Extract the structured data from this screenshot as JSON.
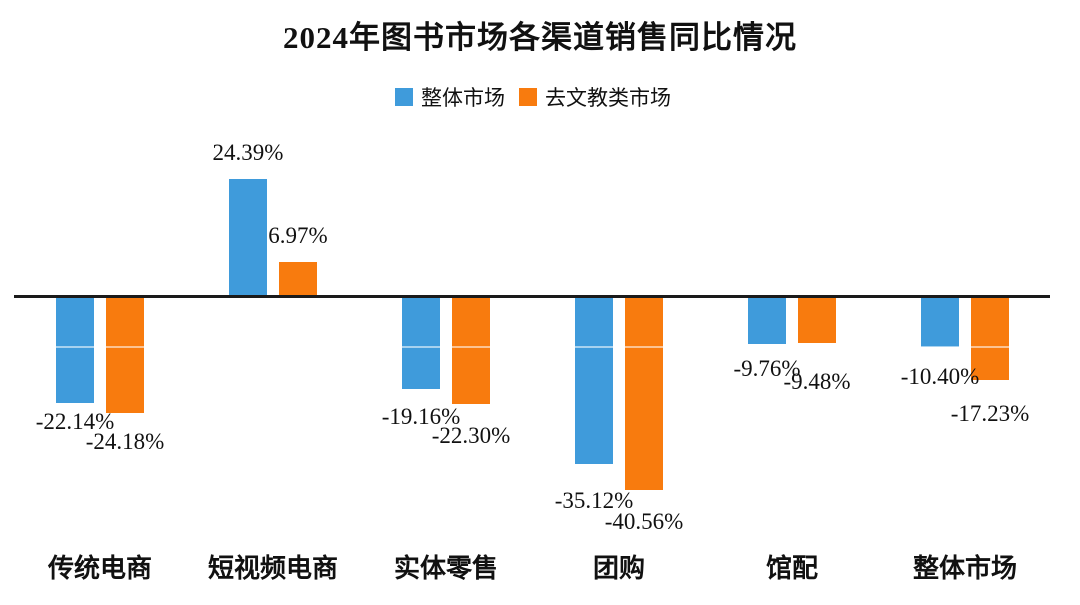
{
  "chart_data": {
    "type": "bar",
    "title": "2024年图书市场各渠道销售同比情况",
    "categories": [
      "传统电商",
      "短视频电商",
      "实体零售",
      "团购",
      "馆配",
      "整体市场"
    ],
    "series": [
      {
        "name": "整体市场",
        "color": "#3F9BDB",
        "values": [
          -22.14,
          24.39,
          -19.16,
          -35.12,
          -9.76,
          -10.4
        ],
        "labels": [
          "-22.14%",
          "24.39%",
          "-19.16%",
          "-35.12%",
          "-9.76%",
          "-10.40%"
        ]
      },
      {
        "name": "去文教类市场",
        "color": "#F87B0E",
        "values": [
          -24.18,
          6.97,
          -22.3,
          -40.56,
          -9.48,
          -17.23
        ],
        "labels": [
          "-24.18%",
          "6.97%",
          "-22.30%",
          "-40.56%",
          "-9.48%",
          "-17.23%"
        ]
      }
    ],
    "ylim": [
      -45,
      30
    ],
    "xlabel": "",
    "ylabel": "",
    "grid": false,
    "legend_position": "top",
    "axis_color": "#1a1a1a",
    "background_color": "#ffffff"
  }
}
